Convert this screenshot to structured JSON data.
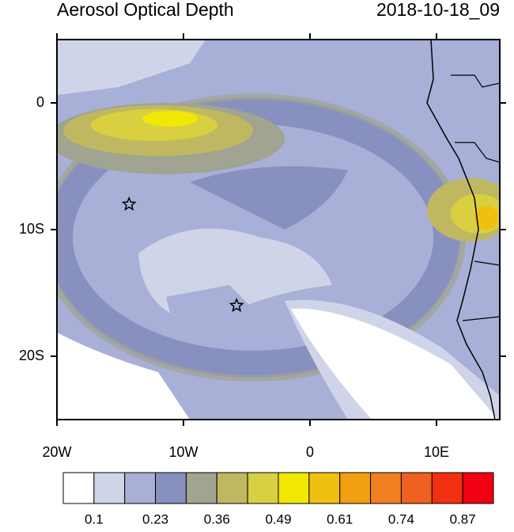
{
  "title": "Aerosol Optical Depth",
  "time": "2018-10-18_09",
  "map": {
    "xlim": [
      -20,
      15
    ],
    "ylim": [
      -25,
      5
    ],
    "xticks": [
      {
        "value": -20,
        "label": "20W"
      },
      {
        "value": -10,
        "label": "10W"
      },
      0,
      {
        "value": 10,
        "label": "10E"
      }
    ],
    "yticks": [
      0,
      {
        "value": -10,
        "label": "10S"
      },
      {
        "value": -20,
        "label": "20S"
      }
    ],
    "markers": [
      {
        "lon": -14.3,
        "lat": -8
      },
      {
        "lon": -5.8,
        "lat": -16
      }
    ]
  },
  "colorbar": {
    "colors": [
      "#ffffff",
      "#d0d4e8",
      "#a8b0d8",
      "#8890c0",
      "#a0a490",
      "#c0b860",
      "#d8d040",
      "#f0e800",
      "#f0c010",
      "#f0a010",
      "#f08020",
      "#f06020",
      "#f03010",
      "#f00010"
    ],
    "labels": [
      0.1,
      0.23,
      0.36,
      0.49,
      0.61,
      0.74,
      0.87
    ]
  }
}
